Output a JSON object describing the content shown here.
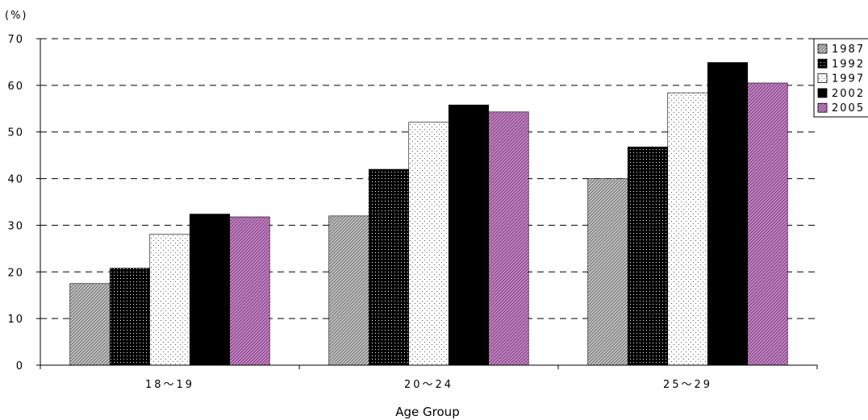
{
  "chart_data": {
    "type": "bar",
    "ylabel": "(%)",
    "xlabel": "Age Group",
    "categories": [
      "18～19",
      "20～24",
      "25～29"
    ],
    "ylim": [
      0,
      70
    ],
    "yticks": [
      0,
      10,
      20,
      30,
      40,
      50,
      60,
      70
    ],
    "grid": true,
    "legend_position": "top-right",
    "series": [
      {
        "name": "1987",
        "values": [
          17.5,
          32.0,
          40.0
        ],
        "color": "#a8a8a8",
        "pattern": "diag-gray"
      },
      {
        "name": "1992",
        "values": [
          20.8,
          42.0,
          46.8
        ],
        "color": "#000000",
        "pattern": "dots-on-black"
      },
      {
        "name": "1997",
        "values": [
          28.1,
          52.1,
          58.4
        ],
        "color": "#ffffff",
        "pattern": "sparse-dots"
      },
      {
        "name": "2002",
        "values": [
          32.4,
          55.8,
          64.9
        ],
        "color": "#000000",
        "pattern": "solid"
      },
      {
        "name": "2005",
        "values": [
          31.8,
          54.3,
          60.5
        ],
        "color": "#9b4f9b",
        "pattern": "diag-purple"
      }
    ]
  }
}
